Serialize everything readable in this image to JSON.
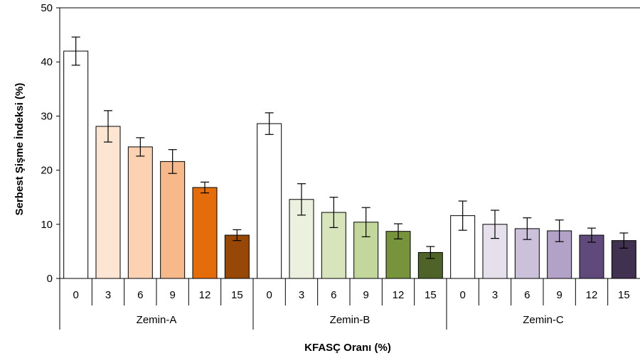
{
  "chart_data": {
    "type": "bar",
    "title": "",
    "ylabel": "Serbest Şişme İndeksi (%)",
    "xlabel": "KFASÇ Oranı (%)",
    "ylim": [
      0,
      50
    ],
    "yticks": [
      0,
      10,
      20,
      30,
      40,
      50
    ],
    "categories": [
      "0",
      "3",
      "6",
      "9",
      "12",
      "15"
    ],
    "groups": [
      {
        "name": "Zemin-A",
        "values": [
          42,
          28.1,
          24.3,
          21.6,
          16.8,
          8.0
        ],
        "errors": [
          2.6,
          2.9,
          1.7,
          2.2,
          1.0,
          1.0
        ],
        "colors": [
          "#ffffff",
          "#fde5d4",
          "#fcd2b2",
          "#f8b98a",
          "#e46c0a",
          "#974806"
        ]
      },
      {
        "name": "Zemin-B",
        "values": [
          28.6,
          14.6,
          12.2,
          10.4,
          8.7,
          4.8
        ],
        "errors": [
          2.0,
          2.9,
          2.8,
          2.7,
          1.4,
          1.1
        ],
        "colors": [
          "#ffffff",
          "#ebf1de",
          "#d8e4bc",
          "#c3d69b",
          "#77933c",
          "#4f6228"
        ]
      },
      {
        "name": "Zemin-C",
        "values": [
          11.6,
          10.0,
          9.2,
          8.8,
          8.0,
          7.0
        ],
        "errors": [
          2.7,
          2.6,
          2.0,
          2.0,
          1.3,
          1.4
        ],
        "colors": [
          "#ffffff",
          "#e6e0ec",
          "#ccc1da",
          "#b3a2c7",
          "#604a7b",
          "#403151"
        ]
      }
    ],
    "grid": false,
    "legend": "none"
  }
}
